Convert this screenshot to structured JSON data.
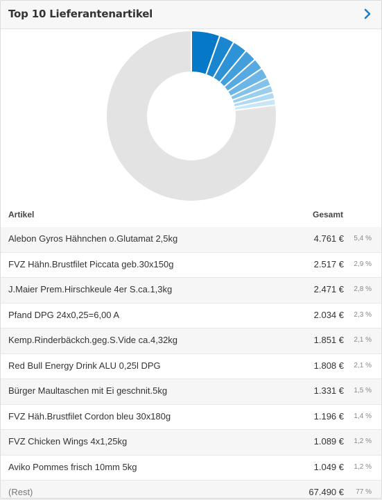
{
  "widget": {
    "title": "Top 10 Lieferantenartikel",
    "columns": {
      "artikel": "Artikel",
      "gesamt": "Gesamt"
    },
    "rows": [
      {
        "name": "Alebon Gyros Hähnchen o.Glutamat 2,5kg",
        "amount": "4.761 €",
        "percent": "5,4 %"
      },
      {
        "name": "FVZ Hähn.Brustfilet Piccata geb.30x150g",
        "amount": "2.517 €",
        "percent": "2,9 %"
      },
      {
        "name": "J.Maier Prem.Hirschkeule 4er S.ca.1,3kg",
        "amount": "2.471 €",
        "percent": "2,8 %"
      },
      {
        "name": "Pfand DPG 24x0,25=6,00 A",
        "amount": "2.034 €",
        "percent": "2,3 %"
      },
      {
        "name": "Kemp.Rinderbäckch.geg.S.Vide ca.4,32kg",
        "amount": "1.851 €",
        "percent": "2,1 %"
      },
      {
        "name": "Red Bull Energy Drink ALU 0,25l DPG",
        "amount": "1.808 €",
        "percent": "2,1 %"
      },
      {
        "name": "Bürger Maultaschen mit Ei geschnit.5kg",
        "amount": "1.331 €",
        "percent": "1,5 %"
      },
      {
        "name": "FVZ Häh.Brustfilet Cordon bleu 30x180g",
        "amount": "1.196 €",
        "percent": "1,4 %"
      },
      {
        "name": "FVZ Chicken Wings 4x1,25kg",
        "amount": "1.089 €",
        "percent": "1,2 %"
      },
      {
        "name": "Aviko Pommes frisch 10mm 5kg",
        "amount": "1.049 €",
        "percent": "1,2 %"
      }
    ],
    "rest": {
      "name": "(Rest)",
      "amount": "67.490 €",
      "percent": "77 %"
    }
  },
  "chart_data": {
    "type": "pie",
    "variant": "donut",
    "labels": [
      "Alebon Gyros Hähnchen o.Glutamat 2,5kg",
      "FVZ Hähn.Brustfilet Piccata geb.30x150g",
      "J.Maier Prem.Hirschkeule 4er S.ca.1,3kg",
      "Pfand DPG 24x0,25=6,00 A",
      "Kemp.Rinderbäckch.geg.S.Vide ca.4,32kg",
      "Red Bull Energy Drink ALU 0,25l DPG",
      "Bürger Maultaschen mit Ei geschnit.5kg",
      "FVZ Häh.Brustfilet Cordon bleu 30x180g",
      "FVZ Chicken Wings 4x1,25kg",
      "Aviko Pommes frisch 10mm 5kg",
      "(Rest)"
    ],
    "values": [
      4761,
      2517,
      2471,
      2034,
      1851,
      1808,
      1331,
      1196,
      1089,
      1049,
      67490
    ],
    "colors": [
      "#0678c8",
      "#1a86d0",
      "#2e92d6",
      "#439edc",
      "#57aae1",
      "#6cb6e6",
      "#82c2eb",
      "#99ceef",
      "#b0daf3",
      "#c9e6f7",
      "#e3e3e3"
    ],
    "start": "12 o'clock, clockwise"
  },
  "colors": {
    "accent": "#1f7fc4",
    "header_bg": "#f7f7f7"
  }
}
